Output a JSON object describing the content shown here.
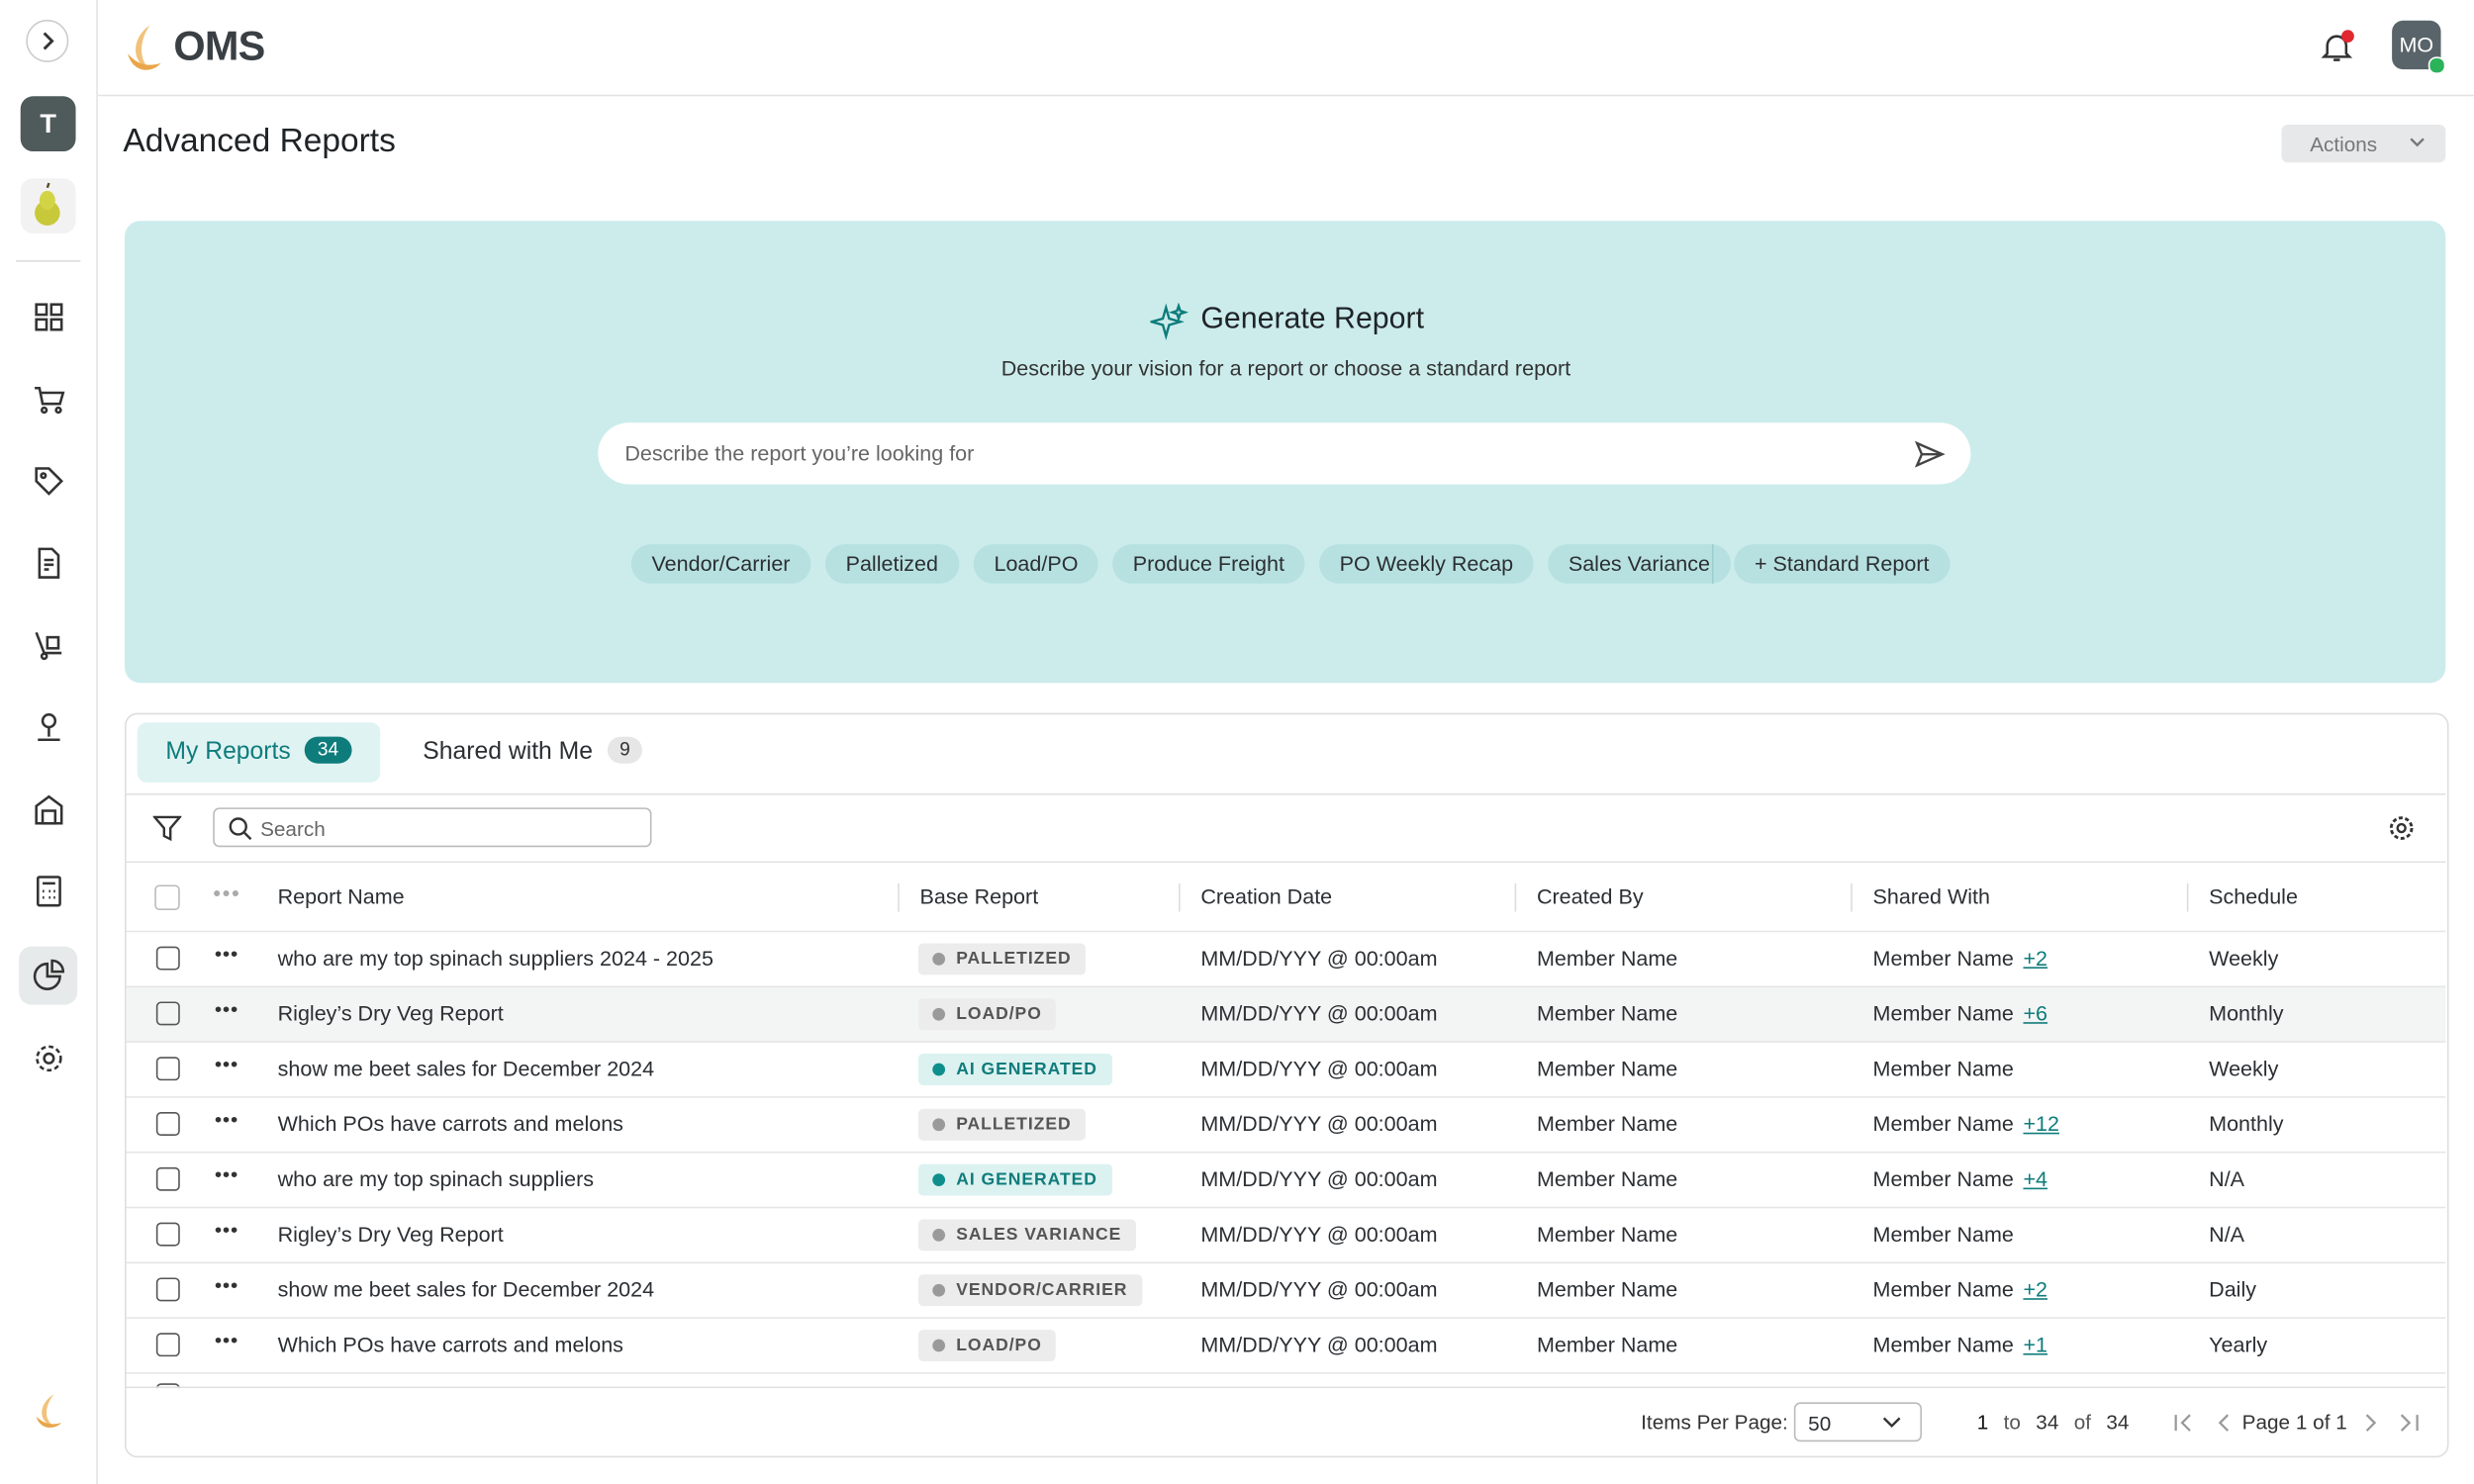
{
  "header": {
    "logo": "OMS",
    "avatar": "MO"
  },
  "sidebar": {
    "workspace": "T"
  },
  "page": {
    "title": "Advanced Reports",
    "actions": "Actions"
  },
  "generate": {
    "title": "Generate Report",
    "subtitle": "Describe your vision for a report or choose a standard report",
    "placeholder": "Describe the report you’re looking for",
    "chips": [
      "Vendor/Carrier",
      "Palletized",
      "Load/PO",
      "Produce Freight",
      "PO Weekly Recap",
      "Sales Variance"
    ],
    "standard": "+ Standard Report"
  },
  "tabs": [
    {
      "label": "My Reports",
      "count": 34
    },
    {
      "label": "Shared with Me",
      "count": 9
    }
  ],
  "search": {
    "placeholder": "Search"
  },
  "table": {
    "columns": [
      "Report Name",
      "Base Report",
      "Creation Date",
      "Created By",
      "Shared With",
      "Schedule"
    ],
    "rows": [
      {
        "name": "who are my top spinach suppliers 2024 - 2025",
        "base": "PALLETIZED",
        "date": "MM/DD/YYY @ 00:00am",
        "created_by": "Member Name",
        "shared": "Member Name",
        "extra": "+2",
        "schedule": "Weekly"
      },
      {
        "name": "Rigley’s Dry Veg Report",
        "base": "LOAD/PO",
        "date": "MM/DD/YYY @ 00:00am",
        "created_by": "Member Name",
        "shared": "Member Name",
        "extra": "+6",
        "schedule": "Monthly"
      },
      {
        "name": "show me beet sales for December 2024",
        "base": "AI GENERATED",
        "date": "MM/DD/YYY @ 00:00am",
        "created_by": "Member Name",
        "shared": "Member Name",
        "extra": null,
        "schedule": "Weekly"
      },
      {
        "name": "Which POs have carrots and melons",
        "base": "PALLETIZED",
        "date": "MM/DD/YYY @ 00:00am",
        "created_by": "Member Name",
        "shared": "Member Name",
        "extra": "+12",
        "schedule": "Monthly"
      },
      {
        "name": "who are my top spinach suppliers",
        "base": "AI GENERATED",
        "date": "MM/DD/YYY @ 00:00am",
        "created_by": "Member Name",
        "shared": "Member Name",
        "extra": "+4",
        "schedule": "N/A"
      },
      {
        "name": "Rigley’s Dry Veg Report",
        "base": "SALES VARIANCE",
        "date": "MM/DD/YYY @ 00:00am",
        "created_by": "Member Name",
        "shared": "Member Name",
        "extra": null,
        "schedule": "N/A"
      },
      {
        "name": "show me beet sales for December 2024",
        "base": "VENDOR/CARRIER",
        "date": "MM/DD/YYY @ 00:00am",
        "created_by": "Member Name",
        "shared": "Member Name",
        "extra": "+2",
        "schedule": "Daily"
      },
      {
        "name": "Which POs have carrots and melons",
        "base": "LOAD/PO",
        "date": "MM/DD/YYY @ 00:00am",
        "created_by": "Member Name",
        "shared": "Member Name",
        "extra": "+1",
        "schedule": "Yearly"
      }
    ]
  },
  "pagination": {
    "items_label": "Items Per Page:",
    "per_page": 50,
    "from": 1,
    "to_label": "to",
    "to": 34,
    "of_label": "of",
    "total": 34,
    "page_label": "Page",
    "page": 1,
    "page_of": "of",
    "pages": 1
  }
}
